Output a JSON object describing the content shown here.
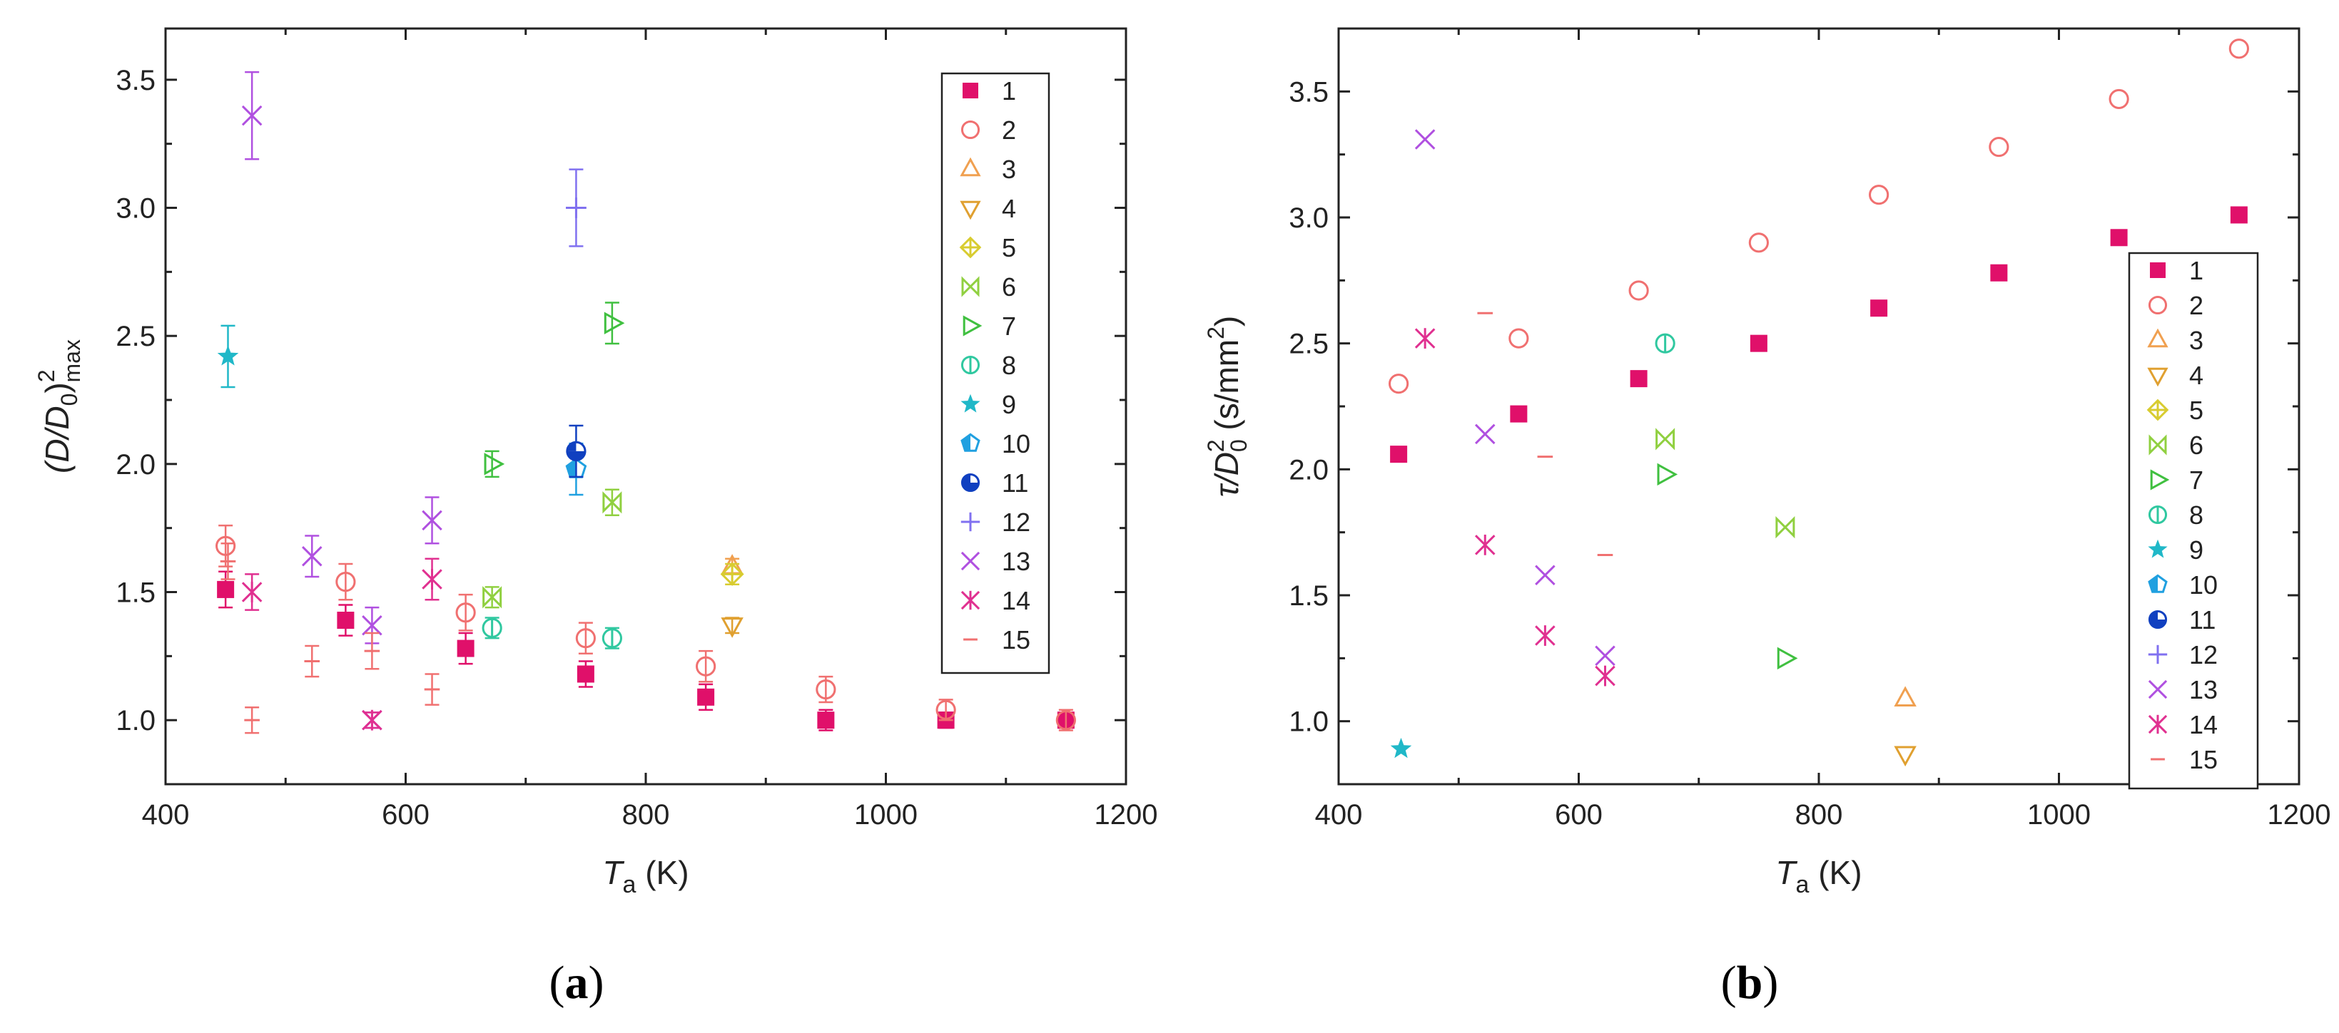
{
  "panel_labels": {
    "a": "a",
    "b": "b"
  },
  "legend_labels": [
    "1",
    "2",
    "3",
    "4",
    "5",
    "6",
    "7",
    "8",
    "9",
    "10",
    "11",
    "12",
    "13",
    "14",
    "15"
  ],
  "colors": {
    "s1": "#e0106a",
    "s2": "#f07070",
    "s3": "#f0a050",
    "s4": "#e0a030",
    "s5": "#d8cc30",
    "s6": "#90d040",
    "s7": "#40c040",
    "s8": "#30c8a0",
    "s9": "#20b8c8",
    "s10": "#20a0e0",
    "s11": "#1040c0",
    "s12": "#8070f0",
    "s13": "#b050e0",
    "s14": "#e03090",
    "s15": "#f07070"
  },
  "marker_icons": [
    "filled-square",
    "open-circle",
    "open-triangle-up",
    "open-triangle-down",
    "crossed-diamond",
    "bowtie-cross",
    "triangle-right",
    "barred-circle",
    "star",
    "half-filled-pentagon",
    "half-filled-circle",
    "plus",
    "x-cross",
    "asterisk",
    "dash"
  ],
  "chart_data": [
    {
      "type": "scatter",
      "title": "",
      "xlabel_main": "T",
      "xlabel_sub": "a",
      "xlabel_unit": " (K)",
      "ylabel": "(D/D0)2max",
      "ylabel_parts": {
        "main": "(D/D",
        "sub0": "0",
        "close": ")",
        "sup": "2",
        "sub": "max"
      },
      "xlim": [
        400,
        1200
      ],
      "ylim": [
        0.75,
        3.7
      ],
      "xticks": [
        400,
        600,
        800,
        1000,
        1200
      ],
      "yticks": [
        1.0,
        1.5,
        2.0,
        2.5,
        3.0,
        3.5
      ],
      "ytick_labels": [
        "1.0",
        "1.5",
        "2.0",
        "2.5",
        "3.0",
        "3.5"
      ],
      "grid": false,
      "legend_position": "top-right",
      "series": [
        {
          "name": "1",
          "points": [
            [
              450,
              1.51,
              0.07
            ],
            [
              550,
              1.39,
              0.06
            ],
            [
              650,
              1.28,
              0.06
            ],
            [
              750,
              1.18,
              0.05
            ],
            [
              850,
              1.09,
              0.05
            ],
            [
              950,
              1.0,
              0.04
            ],
            [
              1050,
              1.0,
              0.03
            ],
            [
              1150,
              1.0,
              0.03
            ]
          ]
        },
        {
          "name": "2",
          "points": [
            [
              450,
              1.68,
              0.08
            ],
            [
              550,
              1.54,
              0.07
            ],
            [
              650,
              1.42,
              0.07
            ],
            [
              750,
              1.32,
              0.06
            ],
            [
              850,
              1.21,
              0.06
            ],
            [
              950,
              1.12,
              0.05
            ],
            [
              1050,
              1.04,
              0.04
            ],
            [
              1150,
              1.0,
              0.04
            ]
          ]
        },
        {
          "name": "3",
          "points": [
            [
              872,
              1.6,
              0.03
            ]
          ]
        },
        {
          "name": "4",
          "points": [
            [
              872,
              1.37,
              0.03
            ]
          ]
        },
        {
          "name": "5",
          "points": [
            [
              872,
              1.57,
              0.04
            ]
          ]
        },
        {
          "name": "6",
          "points": [
            [
              672,
              1.48,
              0.04
            ],
            [
              772,
              1.85,
              0.05
            ]
          ]
        },
        {
          "name": "7",
          "points": [
            [
              672,
              2.0,
              0.05
            ],
            [
              772,
              2.55,
              0.08
            ]
          ]
        },
        {
          "name": "8",
          "points": [
            [
              672,
              1.36,
              0.04
            ],
            [
              772,
              1.32,
              0.04
            ]
          ]
        },
        {
          "name": "9",
          "points": [
            [
              452,
              2.42,
              0.12
            ]
          ]
        },
        {
          "name": "10",
          "points": [
            [
              742,
              1.98,
              0.1
            ]
          ]
        },
        {
          "name": "11",
          "points": [
            [
              742,
              2.05,
              0.1
            ]
          ]
        },
        {
          "name": "12",
          "points": [
            [
              742,
              3.0,
              0.15
            ]
          ]
        },
        {
          "name": "13",
          "points": [
            [
              472,
              3.36,
              0.17
            ],
            [
              522,
              1.64,
              0.08
            ],
            [
              572,
              1.37,
              0.07
            ],
            [
              622,
              1.78,
              0.09
            ],
            [
              572,
              1.0,
              0.03
            ]
          ]
        },
        {
          "name": "14",
          "points": [
            [
              472,
              1.5,
              0.07
            ],
            [
              572,
              1.0,
              0.03
            ],
            [
              622,
              1.55,
              0.08
            ]
          ]
        },
        {
          "name": "15",
          "points": [
            [
              472,
              1.0,
              0.05
            ],
            [
              522,
              1.23,
              0.06
            ],
            [
              572,
              1.27,
              0.07
            ],
            [
              622,
              1.12,
              0.06
            ],
            [
              452,
              1.62,
              0.07
            ]
          ]
        }
      ]
    },
    {
      "type": "scatter",
      "title": "",
      "xlabel_main": "T",
      "xlabel_sub": "a",
      "xlabel_unit": " (K)",
      "ylabel": "τ/D02 (s/mm2)",
      "ylabel_parts": {
        "main": "τ/D",
        "sub0": "0",
        "sup": "2",
        "unit": " (s/mm",
        "unitsup": "2",
        "close": ")"
      },
      "xlim": [
        400,
        1200
      ],
      "ylim": [
        0.75,
        3.75
      ],
      "xticks": [
        400,
        600,
        800,
        1000,
        1200
      ],
      "yticks": [
        1.0,
        1.5,
        2.0,
        2.5,
        3.0,
        3.5
      ],
      "ytick_labels": [
        "1.0",
        "1.5",
        "2.0",
        "2.5",
        "3.0",
        "3.5"
      ],
      "grid": false,
      "legend_position": "right",
      "series": [
        {
          "name": "1",
          "points": [
            [
              450,
              2.06
            ],
            [
              550,
              2.22
            ],
            [
              650,
              2.36
            ],
            [
              750,
              2.5
            ],
            [
              850,
              2.64
            ],
            [
              950,
              2.78
            ],
            [
              1050,
              2.92
            ],
            [
              1150,
              3.01
            ]
          ]
        },
        {
          "name": "2",
          "points": [
            [
              450,
              2.34
            ],
            [
              550,
              2.52
            ],
            [
              650,
              2.71
            ],
            [
              750,
              2.9
            ],
            [
              850,
              3.09
            ],
            [
              950,
              3.28
            ],
            [
              1050,
              3.47
            ],
            [
              1150,
              3.67
            ]
          ]
        },
        {
          "name": "3",
          "points": [
            [
              872,
              1.09
            ]
          ]
        },
        {
          "name": "4",
          "points": [
            [
              872,
              0.87
            ]
          ]
        },
        {
          "name": "5",
          "points": []
        },
        {
          "name": "6",
          "points": [
            [
              672,
              2.12
            ],
            [
              772,
              1.77
            ]
          ]
        },
        {
          "name": "7",
          "points": [
            [
              672,
              1.98
            ],
            [
              772,
              1.25
            ]
          ]
        },
        {
          "name": "8",
          "points": [
            [
              672,
              2.5
            ]
          ]
        },
        {
          "name": "9",
          "points": [
            [
              452,
              0.89
            ]
          ]
        },
        {
          "name": "10",
          "points": []
        },
        {
          "name": "11",
          "points": []
        },
        {
          "name": "12",
          "points": []
        },
        {
          "name": "13",
          "points": [
            [
              472,
              3.31
            ],
            [
              522,
              2.14
            ],
            [
              572,
              1.58
            ],
            [
              622,
              1.26
            ]
          ]
        },
        {
          "name": "14",
          "points": [
            [
              472,
              2.52
            ],
            [
              522,
              1.7
            ],
            [
              572,
              1.34
            ],
            [
              622,
              1.18
            ]
          ]
        },
        {
          "name": "15",
          "points": [
            [
              522,
              2.62
            ],
            [
              572,
              2.05
            ],
            [
              622,
              1.66
            ]
          ]
        }
      ]
    }
  ]
}
